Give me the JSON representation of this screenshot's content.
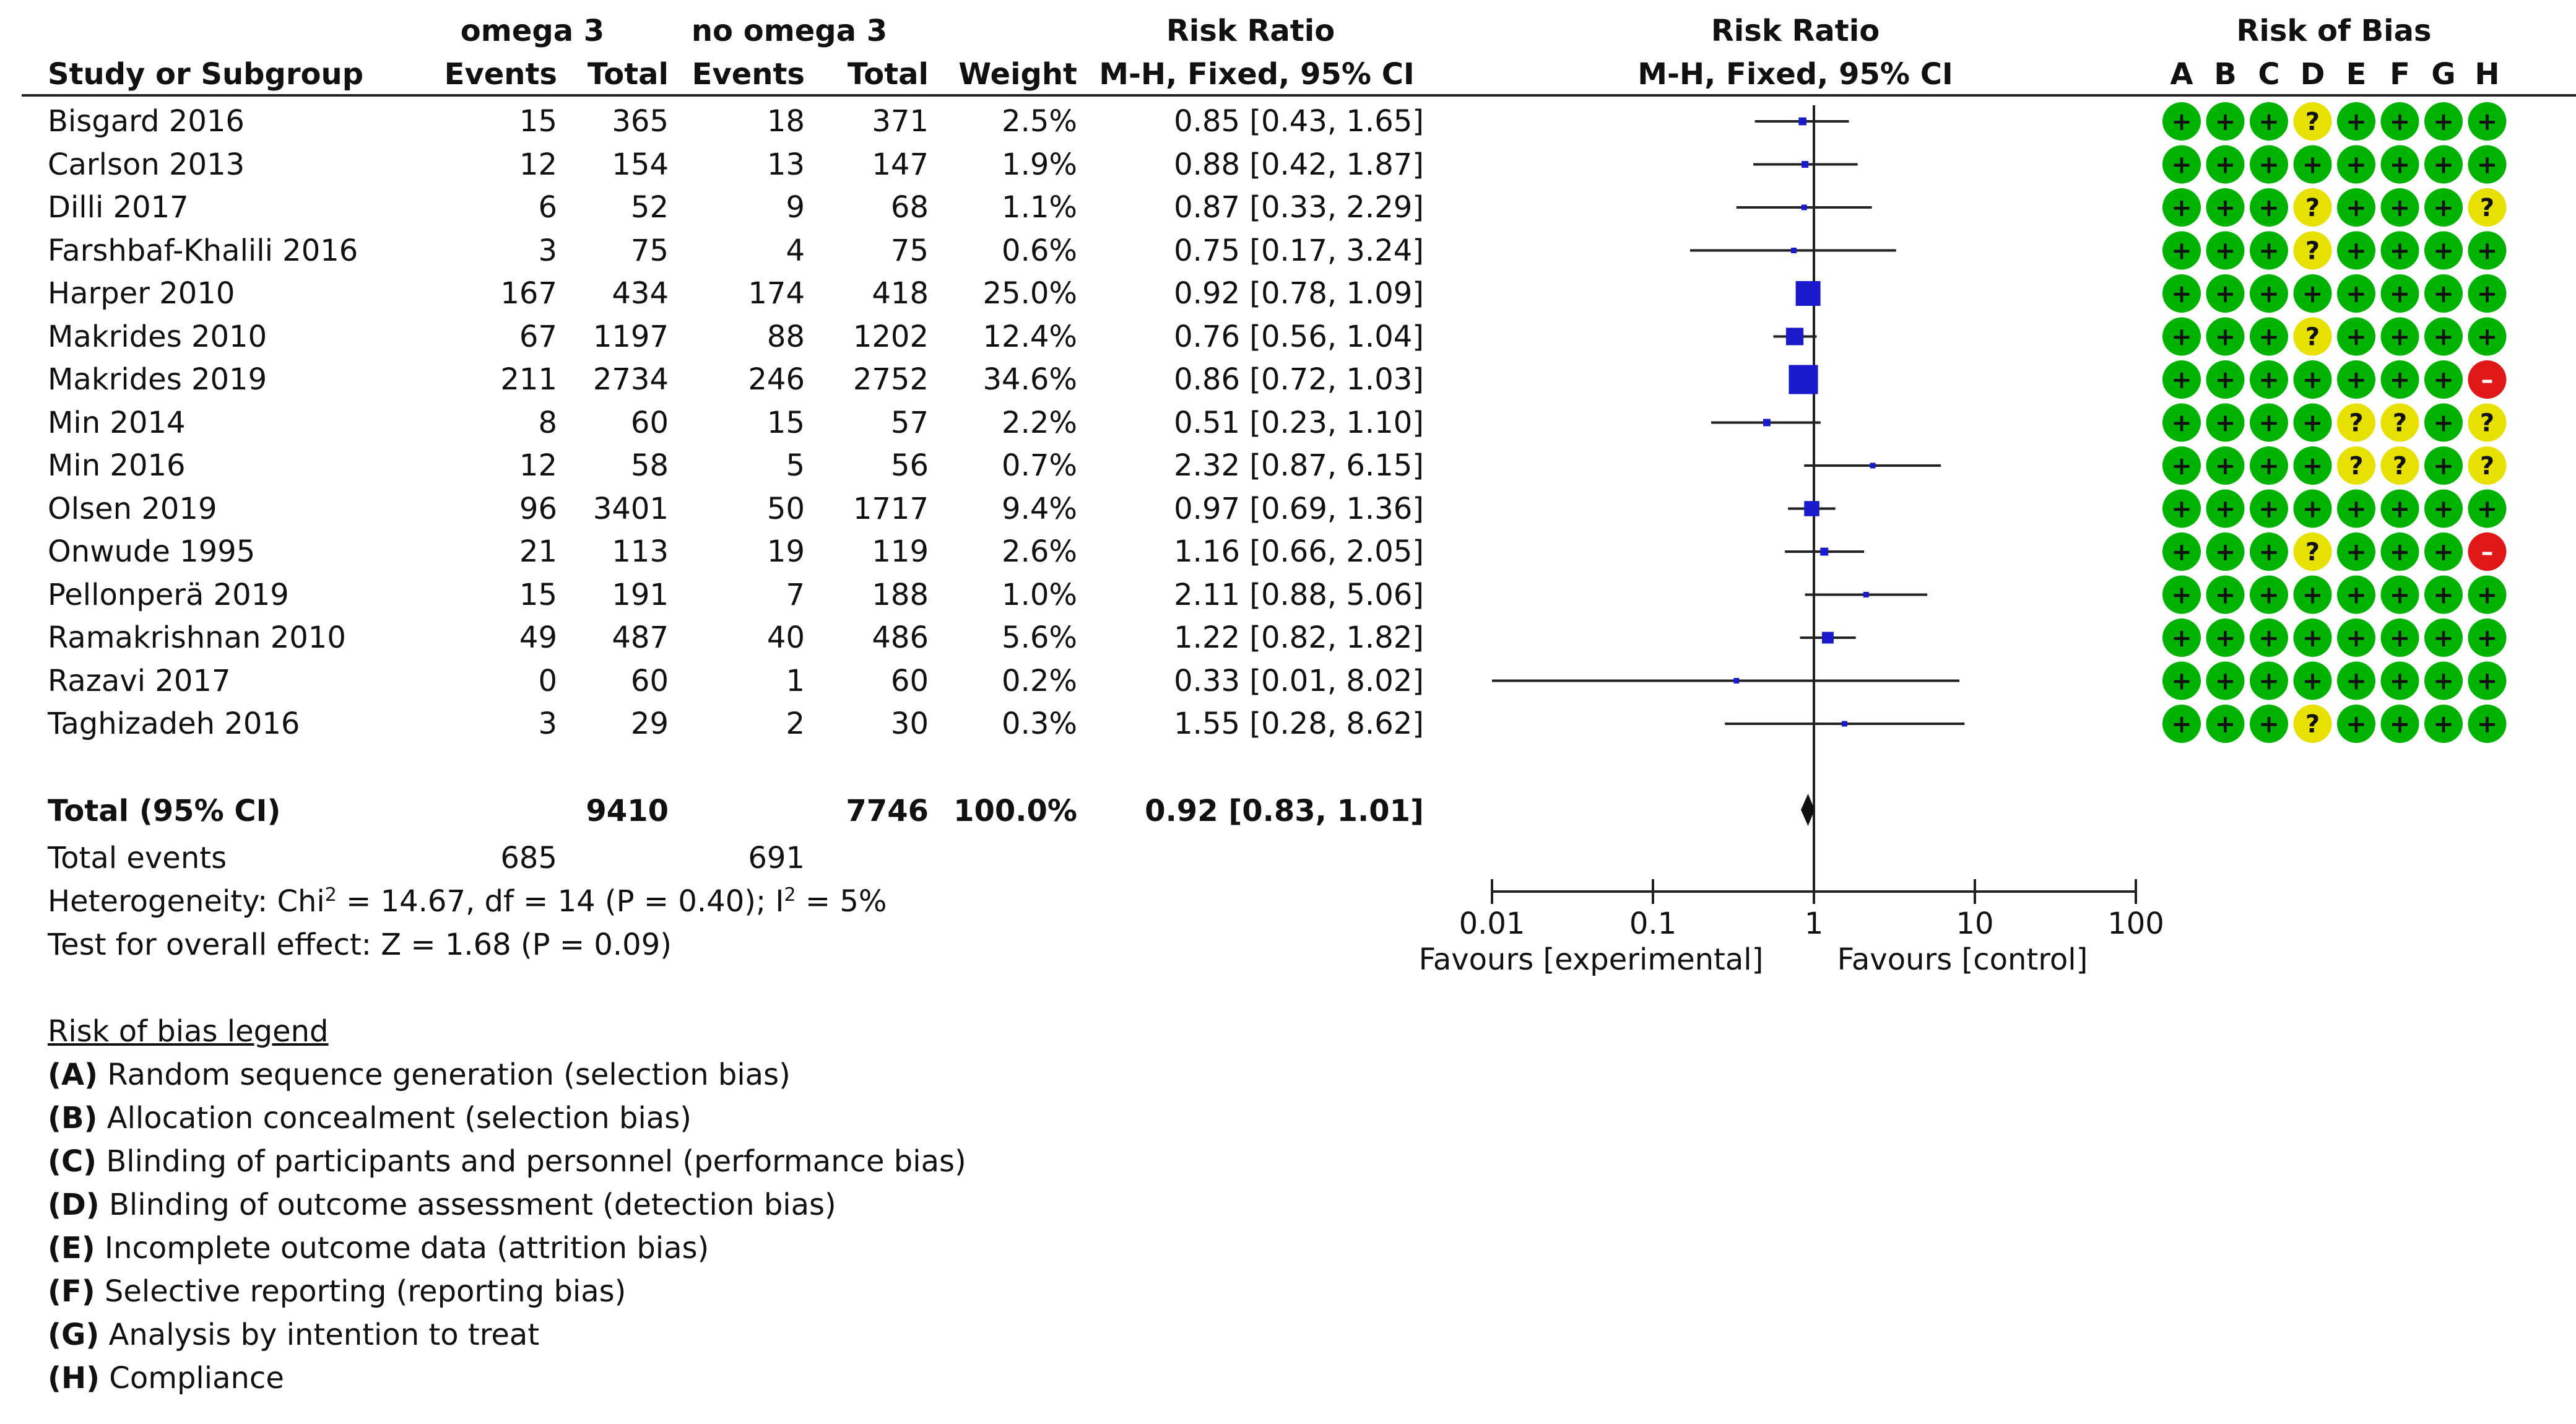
{
  "header": {
    "group1": "omega 3",
    "group2": "no omega 3",
    "risk_ratio": "Risk Ratio",
    "study_col": "Study or Subgroup",
    "events": "Events",
    "total": "Total",
    "weight": "Weight",
    "method": "M-H, Fixed, 95% CI",
    "plot_title": "Risk Ratio",
    "plot_method": "M-H, Fixed, 95% CI",
    "rob_title": "Risk of Bias",
    "rob_letters": [
      "A",
      "B",
      "C",
      "D",
      "E",
      "F",
      "G",
      "H"
    ]
  },
  "studies": [
    {
      "name": "Bisgard 2016",
      "e1": "15",
      "t1": "365",
      "e2": "18",
      "t2": "371",
      "weight": "2.5%",
      "ci": "0.85 [0.43, 1.65]",
      "rob": [
        "+",
        "+",
        "+",
        "?",
        "+",
        "+",
        "+",
        "+"
      ]
    },
    {
      "name": "Carlson 2013",
      "e1": "12",
      "t1": "154",
      "e2": "13",
      "t2": "147",
      "weight": "1.9%",
      "ci": "0.88 [0.42, 1.87]",
      "rob": [
        "+",
        "+",
        "+",
        "+",
        "+",
        "+",
        "+",
        "+"
      ]
    },
    {
      "name": "Dilli 2017",
      "e1": "6",
      "t1": "52",
      "e2": "9",
      "t2": "68",
      "weight": "1.1%",
      "ci": "0.87 [0.33, 2.29]",
      "rob": [
        "+",
        "+",
        "+",
        "?",
        "+",
        "+",
        "+",
        "?"
      ]
    },
    {
      "name": "Farshbaf-Khalili 2016",
      "e1": "3",
      "t1": "75",
      "e2": "4",
      "t2": "75",
      "weight": "0.6%",
      "ci": "0.75 [0.17, 3.24]",
      "rob": [
        "+",
        "+",
        "+",
        "?",
        "+",
        "+",
        "+",
        "+"
      ]
    },
    {
      "name": "Harper 2010",
      "e1": "167",
      "t1": "434",
      "e2": "174",
      "t2": "418",
      "weight": "25.0%",
      "ci": "0.92 [0.78, 1.09]",
      "rob": [
        "+",
        "+",
        "+",
        "+",
        "+",
        "+",
        "+",
        "+"
      ]
    },
    {
      "name": "Makrides 2010",
      "e1": "67",
      "t1": "1197",
      "e2": "88",
      "t2": "1202",
      "weight": "12.4%",
      "ci": "0.76 [0.56, 1.04]",
      "rob": [
        "+",
        "+",
        "+",
        "?",
        "+",
        "+",
        "+",
        "+"
      ]
    },
    {
      "name": "Makrides 2019",
      "e1": "211",
      "t1": "2734",
      "e2": "246",
      "t2": "2752",
      "weight": "34.6%",
      "ci": "0.86 [0.72, 1.03]",
      "rob": [
        "+",
        "+",
        "+",
        "+",
        "+",
        "+",
        "+",
        "-"
      ]
    },
    {
      "name": "Min 2014",
      "e1": "8",
      "t1": "60",
      "e2": "15",
      "t2": "57",
      "weight": "2.2%",
      "ci": "0.51 [0.23, 1.10]",
      "rob": [
        "+",
        "+",
        "+",
        "+",
        "?",
        "?",
        "+",
        "?"
      ]
    },
    {
      "name": "Min 2016",
      "e1": "12",
      "t1": "58",
      "e2": "5",
      "t2": "56",
      "weight": "0.7%",
      "ci": "2.32 [0.87, 6.15]",
      "rob": [
        "+",
        "+",
        "+",
        "+",
        "?",
        "?",
        "+",
        "?"
      ]
    },
    {
      "name": "Olsen 2019",
      "e1": "96",
      "t1": "3401",
      "e2": "50",
      "t2": "1717",
      "weight": "9.4%",
      "ci": "0.97 [0.69, 1.36]",
      "rob": [
        "+",
        "+",
        "+",
        "+",
        "+",
        "+",
        "+",
        "+"
      ]
    },
    {
      "name": "Onwude 1995",
      "e1": "21",
      "t1": "113",
      "e2": "19",
      "t2": "119",
      "weight": "2.6%",
      "ci": "1.16 [0.66, 2.05]",
      "rob": [
        "+",
        "+",
        "+",
        "?",
        "+",
        "+",
        "+",
        "-"
      ]
    },
    {
      "name": "Pellonperä 2019",
      "e1": "15",
      "t1": "191",
      "e2": "7",
      "t2": "188",
      "weight": "1.0%",
      "ci": "2.11 [0.88, 5.06]",
      "rob": [
        "+",
        "+",
        "+",
        "+",
        "+",
        "+",
        "+",
        "+"
      ]
    },
    {
      "name": "Ramakrishnan 2010",
      "e1": "49",
      "t1": "487",
      "e2": "40",
      "t2": "486",
      "weight": "5.6%",
      "ci": "1.22 [0.82, 1.82]",
      "rob": [
        "+",
        "+",
        "+",
        "+",
        "+",
        "+",
        "+",
        "+"
      ]
    },
    {
      "name": "Razavi 2017",
      "e1": "0",
      "t1": "60",
      "e2": "1",
      "t2": "60",
      "weight": "0.2%",
      "ci": "0.33 [0.01, 8.02]",
      "rob": [
        "+",
        "+",
        "+",
        "+",
        "+",
        "+",
        "+",
        "+"
      ]
    },
    {
      "name": "Taghizadeh 2016",
      "e1": "3",
      "t1": "29",
      "e2": "2",
      "t2": "30",
      "weight": "0.3%",
      "ci": "1.55 [0.28, 8.62]",
      "rob": [
        "+",
        "+",
        "+",
        "?",
        "+",
        "+",
        "+",
        "+"
      ]
    }
  ],
  "total": {
    "label": "Total (95% CI)",
    "t1": "9410",
    "t2": "7746",
    "weight": "100.0%",
    "ci": "0.92 [0.83, 1.01]"
  },
  "total_events": {
    "label": "Total events",
    "e1": "685",
    "e2": "691"
  },
  "heterogeneity": {
    "prefix": "Heterogeneity: Chi",
    "sup1": "2",
    "middle": " = 14.67, df = 14 (P = 0.40); I",
    "sup2": "2",
    "suffix": " = 5%"
  },
  "overall_effect": "Test for overall effect: Z = 1.68 (P = 0.09)",
  "axis": {
    "favours_left": "Favours [experimental]",
    "favours_right": "Favours [control]"
  },
  "legend": {
    "title": "Risk of bias legend",
    "items": [
      {
        "key": "(A)",
        "text": " Random sequence generation (selection bias)"
      },
      {
        "key": "(B)",
        "text": " Allocation concealment (selection bias)"
      },
      {
        "key": "(C)",
        "text": " Blinding of participants and personnel (performance bias)"
      },
      {
        "key": "(D)",
        "text": " Blinding of outcome assessment (detection bias)"
      },
      {
        "key": "(E)",
        "text": " Incomplete outcome data (attrition bias)"
      },
      {
        "key": "(F)",
        "text": " Selective reporting (reporting bias)"
      },
      {
        "key": "(G)",
        "text": " Analysis by intention to treat"
      },
      {
        "key": "(H)",
        "text": " Compliance"
      }
    ]
  },
  "colors": {
    "low": "#00b300",
    "unclear": "#e8e000",
    "high": "#e01818",
    "point": "#1a1acc",
    "line": "#222222",
    "diamond": "#111111"
  },
  "chart_data": {
    "type": "forest",
    "title": "Risk Ratio",
    "subtitle": "M-H, Fixed, 95% CI",
    "x_scale": "log",
    "xlim": [
      0.01,
      100
    ],
    "x_ticks": [
      0.01,
      0.1,
      1,
      10,
      100
    ],
    "x_tick_labels": [
      "0.01",
      "0.1",
      "1",
      "10",
      "100"
    ],
    "reference_line": 1,
    "studies": [
      {
        "name": "Bisgard 2016",
        "rr": 0.85,
        "lo": 0.43,
        "hi": 1.65,
        "weight": 2.5
      },
      {
        "name": "Carlson 2013",
        "rr": 0.88,
        "lo": 0.42,
        "hi": 1.87,
        "weight": 1.9
      },
      {
        "name": "Dilli 2017",
        "rr": 0.87,
        "lo": 0.33,
        "hi": 2.29,
        "weight": 1.1
      },
      {
        "name": "Farshbaf-Khalili 2016",
        "rr": 0.75,
        "lo": 0.17,
        "hi": 3.24,
        "weight": 0.6
      },
      {
        "name": "Harper 2010",
        "rr": 0.92,
        "lo": 0.78,
        "hi": 1.09,
        "weight": 25.0
      },
      {
        "name": "Makrides 2010",
        "rr": 0.76,
        "lo": 0.56,
        "hi": 1.04,
        "weight": 12.4
      },
      {
        "name": "Makrides 2019",
        "rr": 0.86,
        "lo": 0.72,
        "hi": 1.03,
        "weight": 34.6
      },
      {
        "name": "Min 2014",
        "rr": 0.51,
        "lo": 0.23,
        "hi": 1.1,
        "weight": 2.2
      },
      {
        "name": "Min 2016",
        "rr": 2.32,
        "lo": 0.87,
        "hi": 6.15,
        "weight": 0.7
      },
      {
        "name": "Olsen 2019",
        "rr": 0.97,
        "lo": 0.69,
        "hi": 1.36,
        "weight": 9.4
      },
      {
        "name": "Onwude 1995",
        "rr": 1.16,
        "lo": 0.66,
        "hi": 2.05,
        "weight": 2.6
      },
      {
        "name": "Pellonperä 2019",
        "rr": 2.11,
        "lo": 0.88,
        "hi": 5.06,
        "weight": 1.0
      },
      {
        "name": "Ramakrishnan 2010",
        "rr": 1.22,
        "lo": 0.82,
        "hi": 1.82,
        "weight": 5.6
      },
      {
        "name": "Razavi 2017",
        "rr": 0.33,
        "lo": 0.01,
        "hi": 8.02,
        "weight": 0.2
      },
      {
        "name": "Taghizadeh 2016",
        "rr": 1.55,
        "lo": 0.28,
        "hi": 8.62,
        "weight": 0.3
      }
    ],
    "pooled": {
      "rr": 0.92,
      "lo": 0.83,
      "hi": 1.01
    }
  }
}
